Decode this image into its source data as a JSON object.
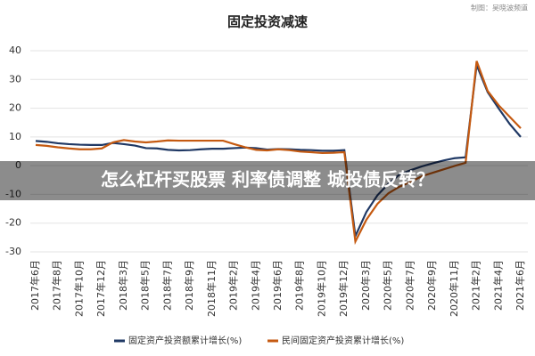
{
  "banner": "怎么杠杆买股票 利率债调整 城投债反转？",
  "chart_data": {
    "type": "line",
    "title": "固定投资减速",
    "source": "制图：吴晓波频道",
    "categories": [
      "2017年6月",
      null,
      "2017年8月",
      null,
      "2017年10月",
      null,
      "2017年12月",
      null,
      "2018年3月",
      null,
      "2018年5月",
      null,
      "2018年7月",
      null,
      "2018年9月",
      null,
      "2018年11月",
      null,
      "2019年2月",
      null,
      "2019年4月",
      null,
      "2019年6月",
      null,
      "2019年8月",
      null,
      "2019年10月",
      null,
      "2019年12月",
      null,
      "2020年3月",
      null,
      "2020年5月",
      null,
      "2020年7月",
      null,
      "2020年9月",
      null,
      "2020年11月",
      null,
      "2021年2月",
      null,
      "2021年4月",
      null,
      "2021年6月"
    ],
    "series": [
      {
        "name": "固定资产投资额累计增长(%)",
        "color": "#1f3864",
        "values": [
          8.6,
          8.3,
          7.8,
          7.5,
          7.3,
          7.2,
          7.2,
          7.9,
          7.5,
          7.0,
          6.1,
          6.0,
          5.5,
          5.3,
          5.4,
          5.7,
          5.9,
          5.9,
          6.1,
          6.3,
          6.1,
          5.6,
          5.8,
          5.7,
          5.5,
          5.4,
          5.2,
          5.2,
          5.4,
          -24.5,
          -16.1,
          -10.3,
          -6.3,
          -3.1,
          -1.6,
          -0.3,
          0.8,
          1.8,
          2.6,
          2.9,
          35.0,
          25.6,
          19.9,
          14.5,
          10.0
        ]
      },
      {
        "name": "民间固定资产投资累计增长(%)",
        "color": "#c55a11",
        "values": [
          7.2,
          6.9,
          6.4,
          6.0,
          5.7,
          5.7,
          6.0,
          8.1,
          8.9,
          8.4,
          8.1,
          8.4,
          8.8,
          8.7,
          8.7,
          8.7,
          8.7,
          8.7,
          7.5,
          6.4,
          5.5,
          5.3,
          5.7,
          5.4,
          4.9,
          4.7,
          4.4,
          4.5,
          4.7,
          -26.4,
          -18.8,
          -13.3,
          -9.6,
          -7.3,
          -5.7,
          -3.7,
          -2.5,
          -1.3,
          -0.1,
          1.0,
          36.4,
          26.0,
          21.0,
          17.0,
          13.0
        ]
      }
    ],
    "ylim": [
      -30,
      40
    ],
    "yticks": [
      -30,
      -20,
      -10,
      0,
      10,
      20,
      30,
      40
    ],
    "grid": true
  }
}
